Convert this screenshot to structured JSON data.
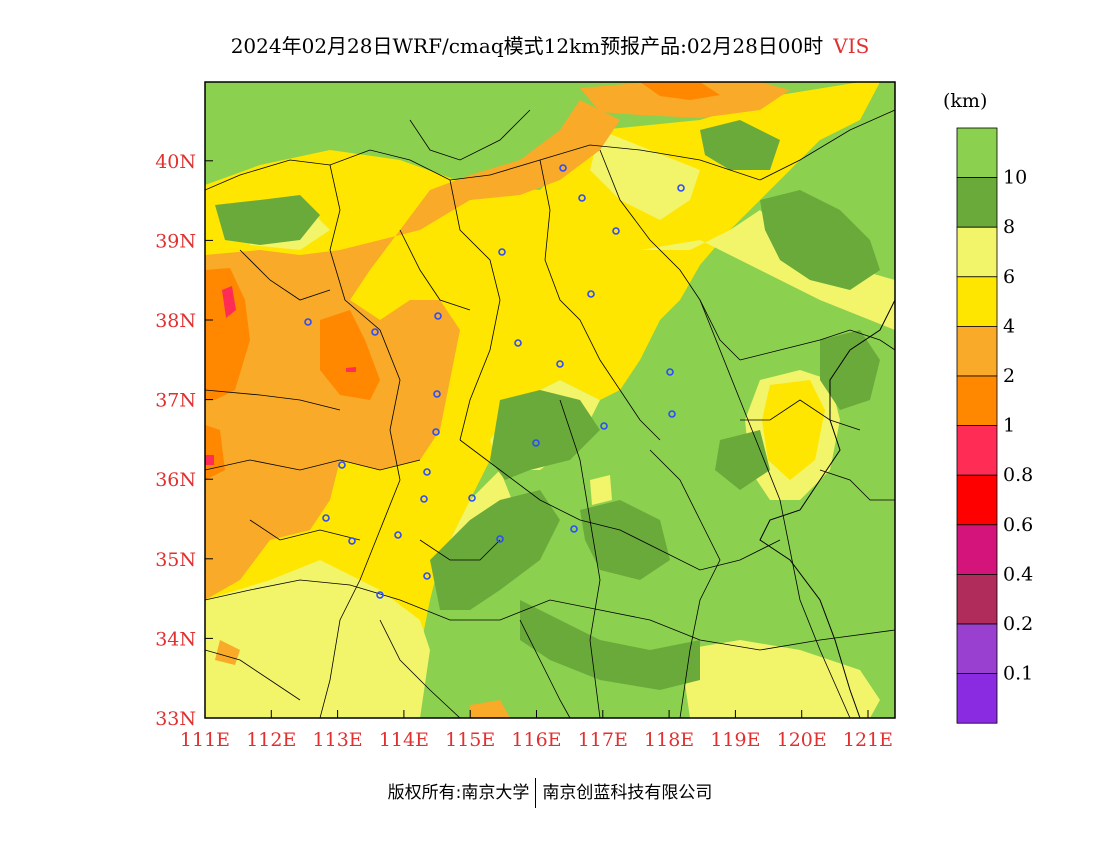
{
  "title": {
    "main": "2024年02月28日WRF/cmaq模式12km预报产品:02月28日00时",
    "variable": "VIS"
  },
  "map": {
    "lon_labels": [
      "111E",
      "112E",
      "113E",
      "114E",
      "115E",
      "116E",
      "117E",
      "118E",
      "119E",
      "120E",
      "121E"
    ],
    "lat_labels": [
      "33N",
      "34N",
      "35N",
      "36N",
      "37N",
      "38N",
      "39N",
      "40N"
    ],
    "axis_label_color": "#e03030"
  },
  "legend": {
    "unit": "(km)",
    "classes": [
      {
        "color": "#8cd050",
        "label": "10"
      },
      {
        "color": "#6aaa3a",
        "label": "8"
      },
      {
        "color": "#f2f46a",
        "label": "6"
      },
      {
        "color": "#ffe600",
        "label": "4"
      },
      {
        "color": "#f8aa28",
        "label": "2"
      },
      {
        "color": "#ff8800",
        "label": "1"
      },
      {
        "color": "#ff2d55",
        "label": "0.8"
      },
      {
        "color": "#ff0000",
        "label": "0.6"
      },
      {
        "color": "#d4147a",
        "label": "0.4"
      },
      {
        "color": "#b02c5a",
        "label": "0.2"
      },
      {
        "color": "#9a40d0",
        "label": "0.1"
      },
      {
        "color": "#8a2be2",
        "label": ""
      }
    ]
  },
  "footer": {
    "left": "版权所有:南京大学",
    "right": "南京创蓝科技有限公司"
  }
}
